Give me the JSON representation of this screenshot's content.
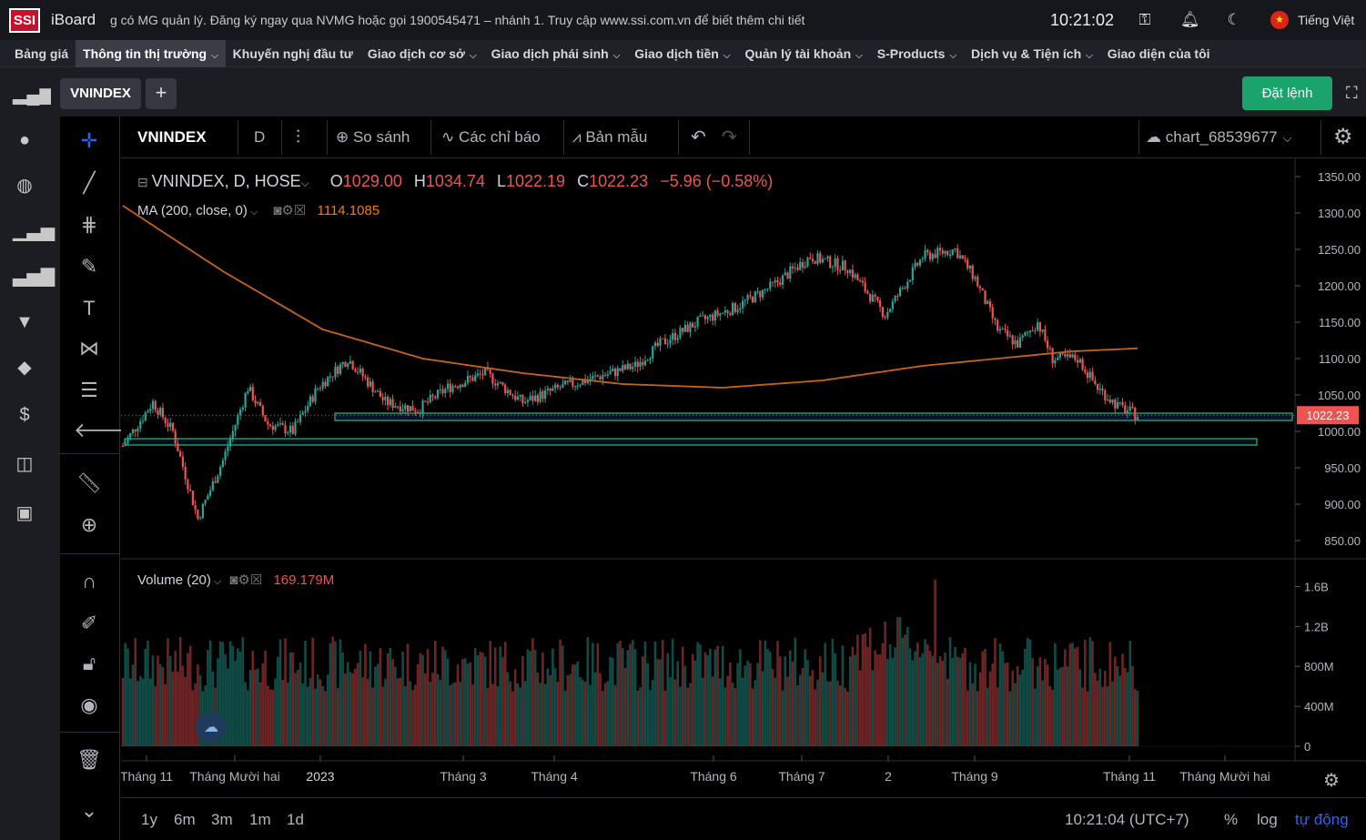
{
  "topbar": {
    "logo": "SSI",
    "brand": "iBoard",
    "ticker": "g có MG quản lý. Đăng ký ngay qua NVMG hoặc gọi 1900545471 – nhánh 1. Truy cập www.ssi.com.vn để biết thêm chi tiết",
    "clock": "10:21:02",
    "language": "Tiếng Việt"
  },
  "menu": {
    "items": [
      {
        "label": "Bảng giá"
      },
      {
        "label": "Thông tin thị trường"
      },
      {
        "label": "Khuyến nghị đầu tư"
      },
      {
        "label": "Giao dịch cơ sở"
      },
      {
        "label": "Giao dịch phái sinh"
      },
      {
        "label": "Giao dịch tiền"
      },
      {
        "label": "Quản lý tài khoản"
      },
      {
        "label": "S-Products"
      },
      {
        "label": "Dịch vụ & Tiện ích"
      },
      {
        "label": "Giao diện của tôi"
      }
    ]
  },
  "tabs": {
    "active": "VNINDEX",
    "add": "+",
    "order_button": "Đặt lệnh"
  },
  "toolbar": {
    "symbol": "VNINDEX",
    "interval": "D",
    "compare": "So sánh",
    "indicators": "Các chỉ báo",
    "templates": "Bản mẫu",
    "layout_name": "chart_68539677"
  },
  "legend": {
    "title": "VNINDEX, D, HOSE",
    "o_label": "O",
    "o": "1029.00",
    "h_label": "H",
    "h": "1034.74",
    "l_label": "L",
    "l": "1022.19",
    "c_label": "C",
    "c": "1022.23",
    "change": "−5.96 (−0.58%)",
    "ma_label": "MA (200, close, 0)",
    "ma_value": "1114.1085",
    "volume_label": "Volume (20)",
    "volume_value": "169.179M"
  },
  "bottom": {
    "ranges": [
      "1y",
      "6m",
      "3m",
      "1m",
      "1d"
    ],
    "time": "10:21:04 (UTC+7)",
    "percent": "%",
    "log": "log",
    "auto": "tự động"
  },
  "colors": {
    "up": "#26a69a",
    "down": "#ef5350",
    "ma": "#c56419",
    "accent": "#2962ff",
    "order": "#1aa36b"
  },
  "chart_data": {
    "type": "line",
    "title": "VNINDEX, D, HOSE",
    "price_axis": [
      "1350.00",
      "1300.00",
      "1250.00",
      "1200.00",
      "1150.00",
      "1100.00",
      "1050.00",
      "1000.00",
      "950.00",
      "900.00",
      "850.00"
    ],
    "ylim": [
      830,
      1360
    ],
    "current_price_label": "1022.23",
    "volume_axis": [
      "1.6B",
      "1.2B",
      "800M",
      "400M",
      "0"
    ],
    "x_labels": [
      "Tháng 11",
      "Tháng Mười hai",
      "2023",
      "Tháng 3",
      "Tháng 4",
      "Tháng 6",
      "Tháng 7",
      "2",
      "Tháng 9",
      "Tháng 11",
      "Tháng Mười hai"
    ],
    "series": [
      {
        "name": "VNINDEX close",
        "x": [
          0,
          12,
          20,
          30,
          40,
          50,
          58,
          68,
          78,
          90,
          105,
          118,
          130,
          145,
          160,
          175,
          190,
          205,
          215,
          230,
          245,
          260,
          275,
          290,
          305,
          320,
          333,
          341,
          350,
          358,
          366,
          372,
          382,
          390,
          398,
          406
        ],
        "values": [
          980,
          1040,
          1000,
          880,
          960,
          1060,
          1010,
          1000,
          1060,
          1100,
          1040,
          1030,
          1060,
          1080,
          1040,
          1060,
          1075,
          1090,
          1120,
          1150,
          1170,
          1200,
          1240,
          1225,
          1160,
          1240,
          1250,
          1210,
          1140,
          1120,
          1150,
          1100,
          1100,
          1060,
          1035,
          1022
        ]
      },
      {
        "name": "MA (200, close, 0)",
        "x": [
          0,
          40,
          80,
          120,
          160,
          200,
          240,
          280,
          320,
          350,
          380,
          406
        ],
        "values": [
          1310,
          1220,
          1140,
          1100,
          1080,
          1065,
          1060,
          1070,
          1090,
          1100,
          1110,
          1114
        ]
      }
    ],
    "horizontal_levels": [
      {
        "name": "support-1",
        "value": 1022
      },
      {
        "name": "support-2",
        "value": 985
      }
    ]
  }
}
